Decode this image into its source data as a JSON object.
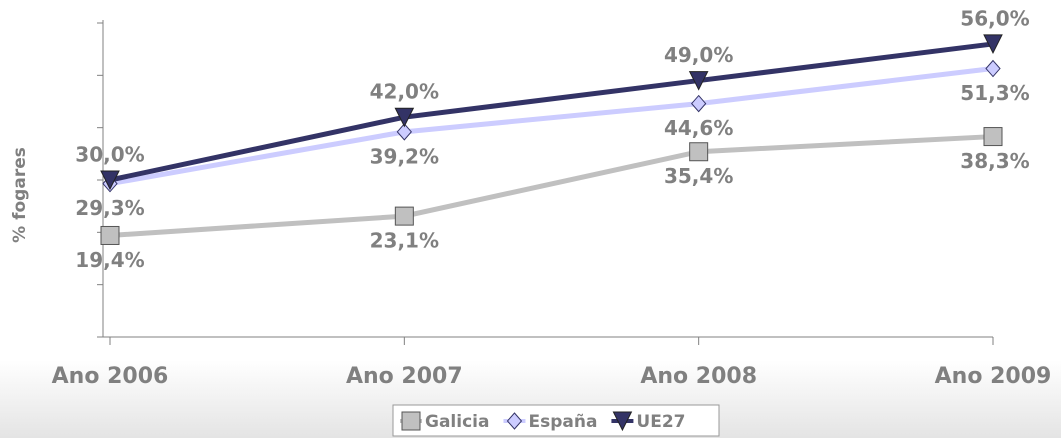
{
  "chart_data": {
    "type": "line",
    "y_label": "% fogares",
    "categories": [
      "Ano 2006",
      "Ano 2007",
      "Ano 2008",
      "Ano 2009"
    ],
    "series": [
      {
        "name": "Galicia",
        "color": "#c0c0c0",
        "marker": "square",
        "values": [
          19.4,
          23.1,
          35.4,
          38.3
        ],
        "value_labels": [
          "19,4%",
          "23,1%",
          "35,4%",
          "38,3%"
        ]
      },
      {
        "name": "España",
        "color": "#ccccff",
        "marker": "diamond",
        "values": [
          29.3,
          39.2,
          44.6,
          51.3
        ],
        "value_labels": [
          "29,3%",
          "39,2%",
          "44,6%",
          "51,3%"
        ]
      },
      {
        "name": "UE27",
        "color": "#333366",
        "marker": "triangle-down",
        "values": [
          30.0,
          42.0,
          49.0,
          56.0
        ],
        "value_labels": [
          "30,0%",
          "42,0%",
          "49,0%",
          "56,0%"
        ]
      }
    ],
    "ylim": [
      0,
      60
    ],
    "yticks": [
      0,
      10,
      20,
      30,
      40,
      50,
      60
    ],
    "legend": "bottom"
  }
}
